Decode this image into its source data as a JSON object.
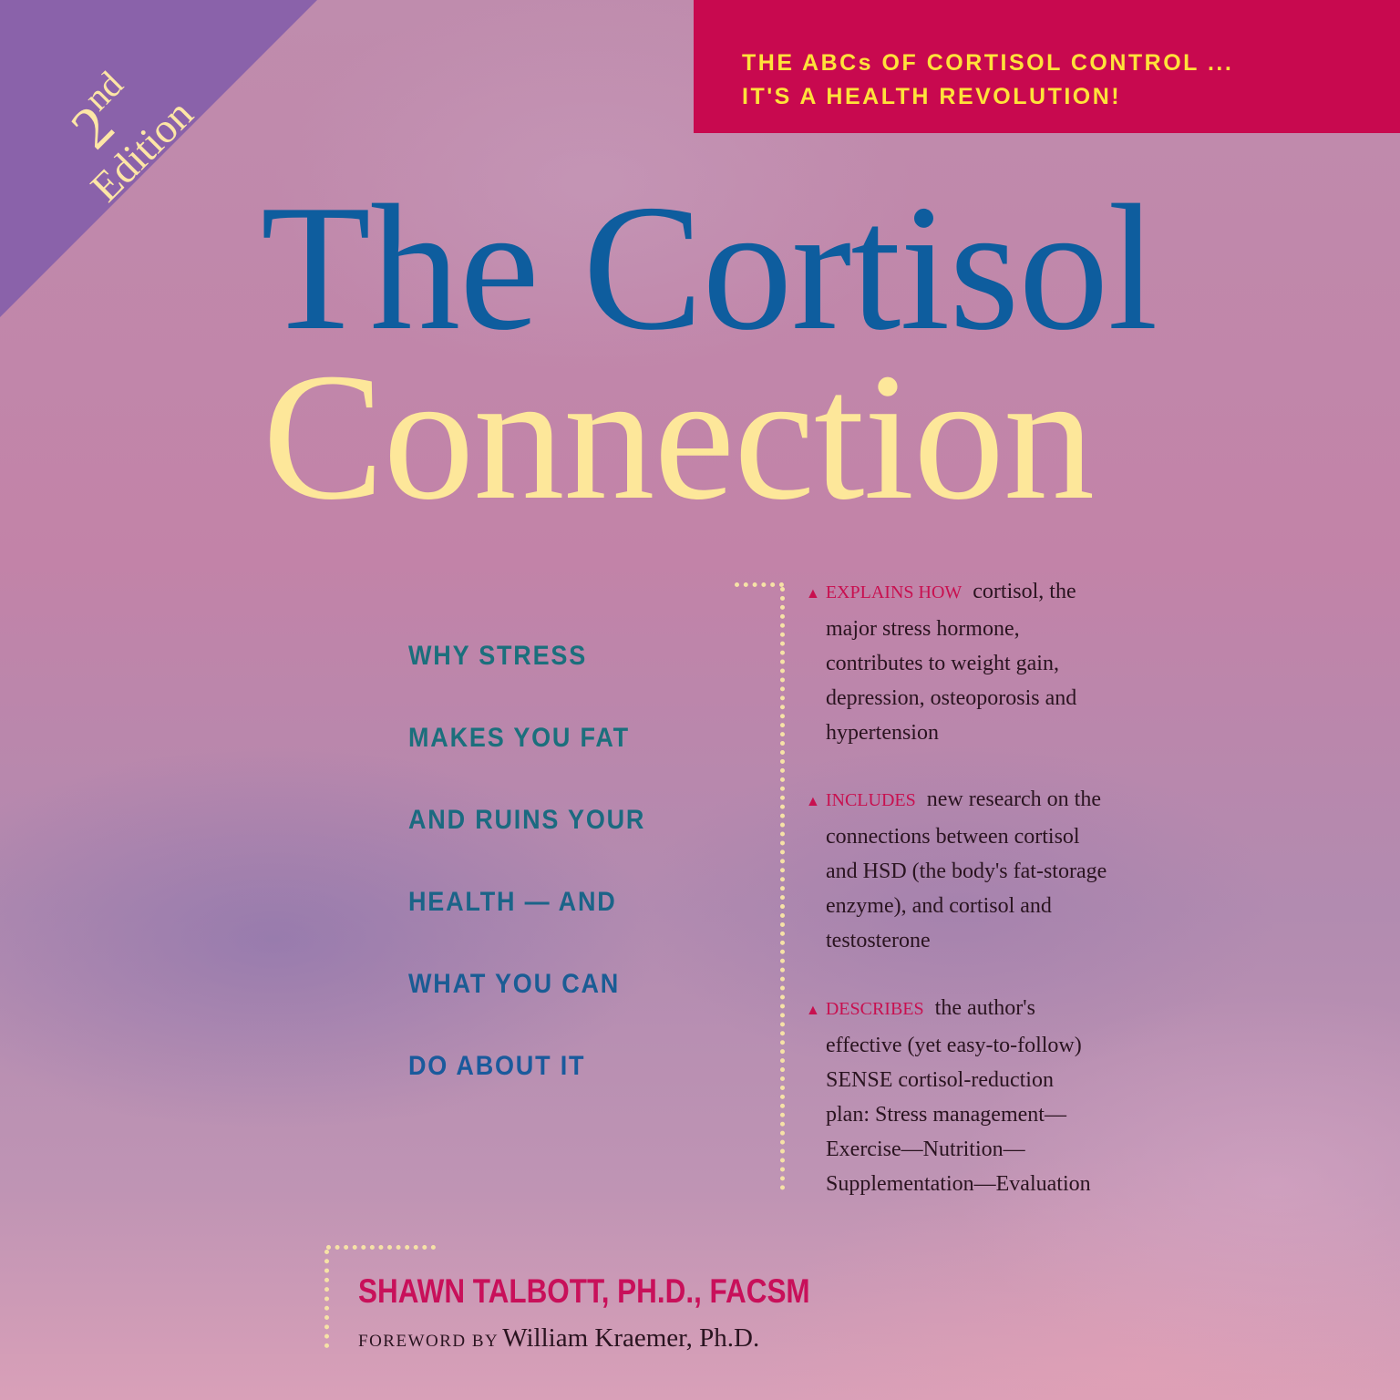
{
  "edition": {
    "number": "2",
    "suffix": "nd",
    "word": "Edition"
  },
  "banner": {
    "lines": [
      "THE ABCs OF CORTISOL CONTROL ...",
      "IT'S A HEALTH REVOLUTION!"
    ]
  },
  "title": {
    "line1": "The Cortisol",
    "line2": "Connection"
  },
  "tagline": [
    "WHY STRESS",
    "MAKES YOU FAT",
    "AND RUINS YOUR",
    "HEALTH — AND",
    "WHAT YOU CAN",
    "DO ABOUT IT"
  ],
  "bullets": [
    {
      "lead": "EXPLAINS HOW",
      "lines": [
        "cortisol, the",
        "major stress hormone,",
        "contributes to weight gain,",
        "depression, osteoporosis and",
        "hypertension"
      ]
    },
    {
      "lead": "INCLUDES",
      "lines": [
        "new research on the",
        "connections between cortisol",
        "and HSD (the body's fat-storage",
        "enzyme), and cortisol and",
        "testosterone"
      ]
    },
    {
      "lead": "DESCRIBES",
      "lines": [
        "the author's",
        "effective (yet easy-to-follow)",
        "SENSE cortisol-reduction",
        "plan: Stress management—",
        "Exercise—Nutrition—",
        "Supplementation—Evaluation"
      ]
    }
  ],
  "author": "SHAWN TALBOTT, PH.D., FACSM",
  "foreword": {
    "label": "FOREWORD BY",
    "name": "William Kraemer, Ph.D."
  },
  "colors": {
    "banner": "#c8094f",
    "title_blue": "#0e5d9e",
    "title_yellow": "#fde79a",
    "accent_red": "#c8104f",
    "corner": "#8a62aa"
  }
}
